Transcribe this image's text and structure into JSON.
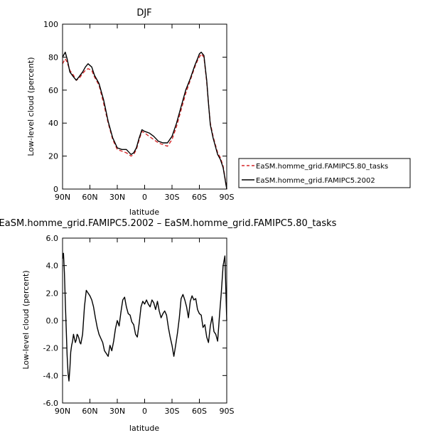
{
  "chart_data": [
    {
      "type": "line",
      "title": "DJF",
      "xlabel": "latitude",
      "ylabel": "Low-level cloud (percent)",
      "xlim": [
        90,
        -90
      ],
      "ylim": [
        0,
        100
      ],
      "xticks": [
        90,
        60,
        30,
        0,
        -30,
        -60,
        -90
      ],
      "xtick_labels": [
        "90N",
        "60N",
        "30N",
        "0",
        "30S",
        "60S",
        "90S"
      ],
      "yticks": [
        0,
        20,
        40,
        60,
        80,
        100
      ],
      "ytick_labels": [
        "0",
        "20",
        "40",
        "60",
        "80",
        "100"
      ],
      "legend_position": "right",
      "series": [
        {
          "name": "EaSM.homme_grid.FAMIPC5.80_tasks",
          "color": "#d62728",
          "dash": "dashed",
          "x": [
            90,
            87,
            85,
            82,
            78,
            75,
            72,
            68,
            65,
            62,
            58,
            55,
            50,
            45,
            40,
            35,
            30,
            25,
            20,
            15,
            12,
            9,
            6,
            3,
            0,
            -5,
            -10,
            -15,
            -20,
            -25,
            -30,
            -35,
            -40,
            -45,
            -50,
            -55,
            -58,
            -60,
            -62,
            -65,
            -68,
            -70,
            -72,
            -75,
            -78,
            -80,
            -83,
            -86,
            -90
          ],
          "values": [
            76,
            79,
            77,
            72,
            69,
            66,
            67,
            70,
            72,
            73,
            72,
            68,
            63,
            52,
            40,
            30,
            24,
            23,
            22,
            20,
            21,
            24,
            30,
            35,
            34,
            32,
            30,
            28,
            27,
            26,
            30,
            38,
            48,
            58,
            66,
            74,
            78,
            80,
            82,
            80,
            65,
            52,
            40,
            32,
            26,
            22,
            19,
            14,
            0
          ]
        },
        {
          "name": "EaSM.homme_grid.FAMIPC5.2002",
          "color": "#000000",
          "dash": "solid",
          "x": [
            90,
            87,
            85,
            82,
            78,
            75,
            72,
            68,
            65,
            62,
            58,
            55,
            50,
            45,
            40,
            35,
            30,
            25,
            20,
            15,
            12,
            9,
            6,
            3,
            0,
            -5,
            -10,
            -15,
            -20,
            -25,
            -30,
            -35,
            -40,
            -45,
            -50,
            -55,
            -58,
            -60,
            -62,
            -65,
            -68,
            -70,
            -72,
            -75,
            -78,
            -80,
            -83,
            -86,
            -90
          ],
          "values": [
            80,
            83,
            79,
            71,
            68,
            66,
            68,
            71,
            74,
            76,
            74,
            69,
            64,
            54,
            41,
            31,
            25,
            24,
            24,
            21,
            22,
            25,
            31,
            36,
            35,
            34,
            32,
            29,
            28,
            28,
            32,
            40,
            50,
            60,
            67,
            75,
            79,
            82,
            83,
            81,
            66,
            52,
            39,
            31,
            25,
            21,
            18,
            13,
            0
          ]
        }
      ]
    },
    {
      "type": "line",
      "title": "EaSM.homme_grid.FAMIPC5.2002 – EaSM.homme_grid.FAMIPC5.80_tasks",
      "xlabel": "latitude",
      "ylabel": "Low-level cloud (percent)",
      "xlim": [
        90,
        -90
      ],
      "ylim": [
        -6,
        6
      ],
      "xticks": [
        90,
        60,
        30,
        0,
        -30,
        -60,
        -90
      ],
      "xtick_labels": [
        "90N",
        "60N",
        "30N",
        "0",
        "30S",
        "60S",
        "90S"
      ],
      "yticks": [
        -6,
        -4,
        -2,
        0,
        2,
        4,
        6
      ],
      "ytick_labels": [
        "-6.0",
        "-4.0",
        "-2.0",
        "0.0",
        "2.0",
        "4.0",
        "6.0"
      ],
      "series": [
        {
          "color": "#000000",
          "dash": "solid",
          "x": [
            90,
            89,
            88,
            87,
            86,
            85,
            84,
            83,
            82,
            81,
            80,
            79,
            78,
            77,
            76,
            75,
            74,
            73,
            72,
            71,
            70,
            68,
            66,
            64,
            62,
            60,
            58,
            56,
            54,
            52,
            50,
            48,
            46,
            44,
            42,
            40,
            38,
            36,
            34,
            32,
            30,
            28,
            26,
            24,
            22,
            20,
            18,
            16,
            14,
            12,
            10,
            8,
            6,
            4,
            2,
            0,
            -2,
            -4,
            -6,
            -8,
            -10,
            -12,
            -14,
            -16,
            -18,
            -20,
            -22,
            -24,
            -26,
            -28,
            -30,
            -32,
            -34,
            -36,
            -38,
            -40,
            -42,
            -44,
            -46,
            -48,
            -50,
            -52,
            -54,
            -56,
            -58,
            -60,
            -62,
            -64,
            -66,
            -68,
            -70,
            -72,
            -74,
            -76,
            -78,
            -80,
            -82,
            -84,
            -86,
            -88,
            -90
          ],
          "values": [
            4.5,
            4.9,
            3.5,
            1.5,
            -0.5,
            -2.5,
            -3.8,
            -4.4,
            -3.5,
            -2.3,
            -1.8,
            -1.5,
            -1.0,
            -1.3,
            -1.6,
            -1.4,
            -1.0,
            -1.1,
            -1.3,
            -1.6,
            -1.7,
            -1.0,
            1.0,
            2.2,
            2.0,
            1.8,
            1.5,
            1.0,
            0.2,
            -0.5,
            -1.0,
            -1.3,
            -1.6,
            -2.2,
            -2.4,
            -2.6,
            -1.8,
            -2.2,
            -1.5,
            -0.6,
            0.0,
            -0.4,
            0.6,
            1.5,
            1.7,
            1.0,
            0.5,
            0.4,
            -0.1,
            -0.3,
            -1.0,
            -1.2,
            -0.2,
            1.0,
            1.4,
            1.2,
            1.5,
            1.2,
            1.0,
            1.5,
            1.3,
            0.8,
            1.4,
            0.7,
            0.2,
            0.5,
            0.7,
            0.4,
            -0.5,
            -1.2,
            -1.8,
            -2.6,
            -1.8,
            -0.9,
            0.2,
            1.6,
            1.9,
            1.5,
            1.0,
            0.2,
            1.4,
            1.8,
            1.5,
            1.6,
            0.8,
            0.5,
            0.4,
            -0.5,
            -0.3,
            -1.2,
            -1.6,
            -0.4,
            0.3,
            -0.8,
            -1.0,
            -1.5,
            0.3,
            2.0,
            4.0,
            4.7,
            0.0
          ]
        }
      ]
    }
  ]
}
